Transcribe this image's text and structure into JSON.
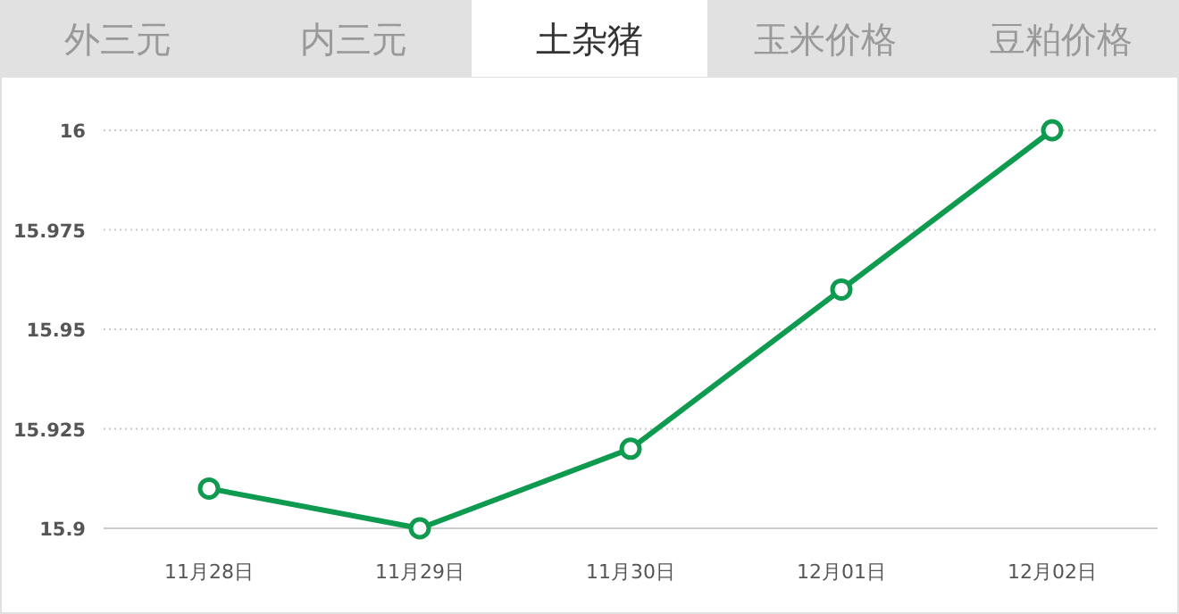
{
  "chart_data": {
    "type": "line",
    "title": "土杂猪",
    "annotations": [
      "外三元",
      "内三元",
      "玉米价格",
      "豆粕价格"
    ],
    "categories": [
      "11月28日",
      "11月29日",
      "11月30日",
      "12月01日",
      "12月02日"
    ],
    "series": [
      {
        "color": "#0e9a4f",
        "values": [
          15.91,
          15.9,
          15.92,
          15.96,
          16
        ]
      }
    ],
    "ylim": [
      15.9,
      16
    ],
    "yticks": [
      15.9,
      15.925,
      15.95,
      15.975,
      16
    ],
    "grid": "y",
    "marker": "circle",
    "line_style": "solid"
  }
}
